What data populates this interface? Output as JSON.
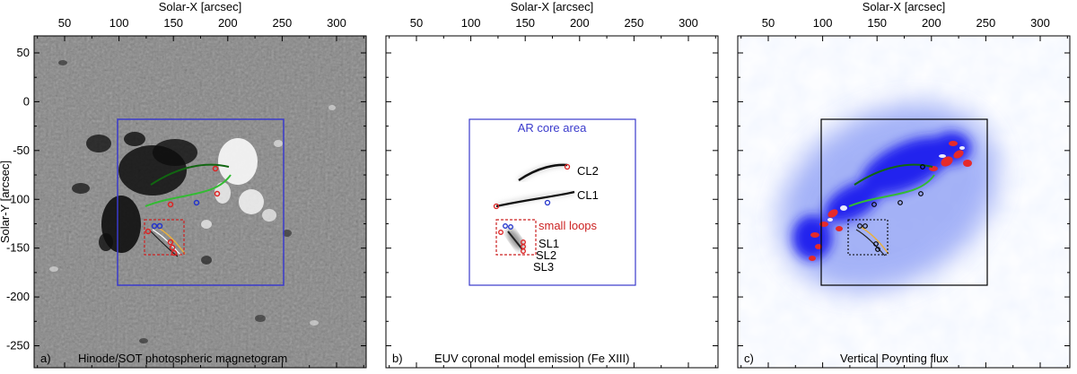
{
  "figure": {
    "x_axis_label": "Solar-X [arcsec]",
    "y_axis_label": "Solar-Y [arcsec]",
    "x_ticks": [
      "50",
      "100",
      "150",
      "200",
      "250",
      "300"
    ],
    "y_ticks": [
      "50",
      "0",
      "-50",
      "-100",
      "-150",
      "-200",
      "-250"
    ],
    "panels": [
      {
        "id": "a",
        "caption": "a)",
        "title": "Hinode/SOT photospheric magnetogram"
      },
      {
        "id": "b",
        "caption": "b)",
        "title": "EUV coronal model emission (Fe XIII)"
      },
      {
        "id": "c",
        "caption": "c)",
        "title": "Vertical Poynting flux"
      }
    ],
    "annotations": {
      "ar_core": "AR core area",
      "cl2": "CL2",
      "cl1": "CL1",
      "small_loops": "small loops",
      "sl1": "SL1",
      "sl2": "SL2",
      "sl3": "SL3"
    },
    "colors": {
      "ar_box": "#3a3acc",
      "small_box": "#cc2222",
      "loop_green": "#33bb33",
      "loop_dark_green": "#116611",
      "footpoint_red": "#dd2222",
      "footpoint_blue": "#2233cc",
      "poynting_blue": "#1a1aee",
      "poynting_red": "#e62a2a"
    }
  }
}
